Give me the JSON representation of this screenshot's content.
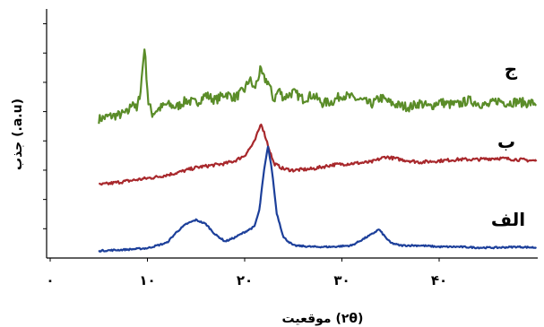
{
  "chart_data": {
    "type": "line",
    "title": "",
    "xlabel": "(۲θ) موقعیت",
    "ylabel": "(a.u.) جذب",
    "xlim": [
      0,
      50
    ],
    "x_ticks": [
      {
        "value": 0,
        "label": "۰"
      },
      {
        "value": 10,
        "label": "۱۰"
      },
      {
        "value": 20,
        "label": "۲۰"
      },
      {
        "value": 30,
        "label": "۳۰"
      },
      {
        "value": 40,
        "label": "۴۰"
      }
    ],
    "y_tick_count": 8,
    "grid": false,
    "legend": "none",
    "series": [
      {
        "name": "ج",
        "color": "#5a8c28",
        "baseline": 5.0,
        "points": [
          [
            5,
            0.0
          ],
          [
            6,
            0.1
          ],
          [
            7,
            0.15
          ],
          [
            8,
            0.25
          ],
          [
            8.5,
            0.7
          ],
          [
            8.9,
            0.3
          ],
          [
            9.3,
            1.1
          ],
          [
            9.7,
            2.7
          ],
          [
            10.1,
            0.6
          ],
          [
            10.5,
            0.2
          ],
          [
            11,
            0.35
          ],
          [
            12,
            0.55
          ],
          [
            13,
            0.45
          ],
          [
            14,
            0.7
          ],
          [
            15,
            0.6
          ],
          [
            16,
            0.9
          ],
          [
            17,
            0.7
          ],
          [
            18,
            0.95
          ],
          [
            19,
            0.8
          ],
          [
            20,
            1.1
          ],
          [
            20.5,
            1.5
          ],
          [
            21,
            1.1
          ],
          [
            21.6,
            1.8
          ],
          [
            22,
            1.5
          ],
          [
            22.4,
            1.4
          ],
          [
            23,
            0.7
          ],
          [
            23.5,
            1.1
          ],
          [
            24,
            0.8
          ],
          [
            25,
            1.0
          ],
          [
            26,
            0.75
          ],
          [
            27,
            0.9
          ],
          [
            28,
            0.6
          ],
          [
            29,
            0.65
          ],
          [
            30,
            0.9
          ],
          [
            31,
            0.8
          ],
          [
            32,
            0.7
          ],
          [
            33,
            0.55
          ],
          [
            34,
            0.8
          ],
          [
            35,
            0.6
          ],
          [
            36,
            0.5
          ],
          [
            37,
            0.45
          ],
          [
            38,
            0.6
          ],
          [
            39,
            0.45
          ],
          [
            40,
            0.65
          ],
          [
            41,
            0.55
          ],
          [
            42,
            0.55
          ],
          [
            43,
            0.7
          ],
          [
            44,
            0.6
          ],
          [
            45,
            0.5
          ],
          [
            46,
            0.7
          ],
          [
            47,
            0.6
          ],
          [
            48,
            0.65
          ],
          [
            49,
            0.6
          ],
          [
            50,
            0.6
          ]
        ]
      },
      {
        "name": "ب",
        "color": "#a8282c",
        "baseline": 2.55,
        "points": [
          [
            5,
            0.0
          ],
          [
            7,
            0.1
          ],
          [
            9,
            0.2
          ],
          [
            11,
            0.3
          ],
          [
            13,
            0.45
          ],
          [
            15,
            0.65
          ],
          [
            17,
            0.75
          ],
          [
            18,
            0.8
          ],
          [
            19,
            0.9
          ],
          [
            20,
            1.1
          ],
          [
            21,
            1.6
          ],
          [
            21.7,
            2.3
          ],
          [
            22.3,
            1.6
          ],
          [
            23,
            0.8
          ],
          [
            24,
            0.6
          ],
          [
            25,
            0.55
          ],
          [
            27,
            0.6
          ],
          [
            29,
            0.75
          ],
          [
            31,
            0.8
          ],
          [
            33,
            0.85
          ],
          [
            34.5,
            1.05
          ],
          [
            36,
            0.95
          ],
          [
            38,
            0.85
          ],
          [
            40,
            0.9
          ],
          [
            42,
            0.95
          ],
          [
            44,
            0.95
          ],
          [
            46,
            1.0
          ],
          [
            48,
            0.95
          ],
          [
            50,
            0.9
          ]
        ]
      },
      {
        "name": "الف",
        "color": "#1c3f9a",
        "baseline": 0.1,
        "points": [
          [
            5,
            0.0
          ],
          [
            8,
            0.05
          ],
          [
            10,
            0.1
          ],
          [
            12,
            0.3
          ],
          [
            13,
            0.7
          ],
          [
            14,
            1.0
          ],
          [
            15,
            1.15
          ],
          [
            16,
            1.0
          ],
          [
            17,
            0.6
          ],
          [
            18,
            0.35
          ],
          [
            19,
            0.5
          ],
          [
            20,
            0.7
          ],
          [
            21,
            0.9
          ],
          [
            21.5,
            1.5
          ],
          [
            22,
            3.0
          ],
          [
            22.4,
            3.9
          ],
          [
            22.8,
            3.0
          ],
          [
            23.3,
            1.4
          ],
          [
            24,
            0.5
          ],
          [
            25,
            0.2
          ],
          [
            27,
            0.15
          ],
          [
            29,
            0.15
          ],
          [
            31,
            0.2
          ],
          [
            32,
            0.4
          ],
          [
            33,
            0.6
          ],
          [
            33.8,
            0.8
          ],
          [
            34.5,
            0.5
          ],
          [
            35,
            0.3
          ],
          [
            36,
            0.2
          ],
          [
            38,
            0.2
          ],
          [
            40,
            0.15
          ],
          [
            42,
            0.15
          ],
          [
            44,
            0.12
          ],
          [
            46,
            0.12
          ],
          [
            48,
            0.15
          ],
          [
            50,
            0.12
          ]
        ]
      }
    ]
  }
}
